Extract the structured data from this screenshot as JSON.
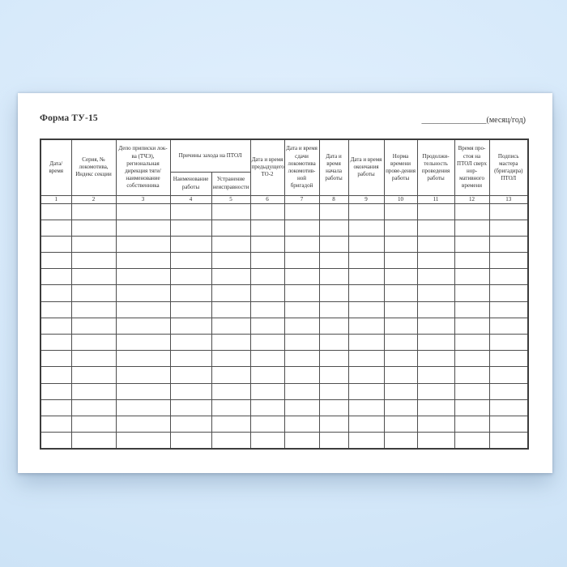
{
  "colors": {
    "background_blue": "#d6e9fa",
    "paper": "#ffffff",
    "table_border": "#4e4e4e",
    "text": "#2e2e2e"
  },
  "document": {
    "form_label": "Форма ТУ-15",
    "period_blank": "________________",
    "period_caption": "(месяц/год)"
  },
  "table": {
    "group_header": "Причины захода на ПТОЛ",
    "columns": [
      {
        "num": "1",
        "label": "Дата/ время"
      },
      {
        "num": "2",
        "label": "Серия, № локомотива, Индекс секции"
      },
      {
        "num": "3",
        "label": "Депо приписки лок-ва (ТЧЭ), региональная дирекция тяги/ наименование собственника"
      },
      {
        "num": "4",
        "label": "Наименование работы"
      },
      {
        "num": "5",
        "label": "Устранение неисправности"
      },
      {
        "num": "6",
        "label": "Дата и время предыдущего ТО-2"
      },
      {
        "num": "7",
        "label": "Дата и время сдачи локомотива локомотив-ной бригадой"
      },
      {
        "num": "8",
        "label": "Дата и время начала работы"
      },
      {
        "num": "9",
        "label": "Дата и время окончания работы"
      },
      {
        "num": "10",
        "label": "Норма времени прове-дения работы"
      },
      {
        "num": "11",
        "label": "Продолжи-тельность проведения работы"
      },
      {
        "num": "12",
        "label": "Время про-стоя на ПТОЛ сверх нор-мативного времени"
      },
      {
        "num": "13",
        "label": "Подпись мастера (бригадира) ПТОЛ"
      }
    ],
    "empty_row_count": 15
  }
}
